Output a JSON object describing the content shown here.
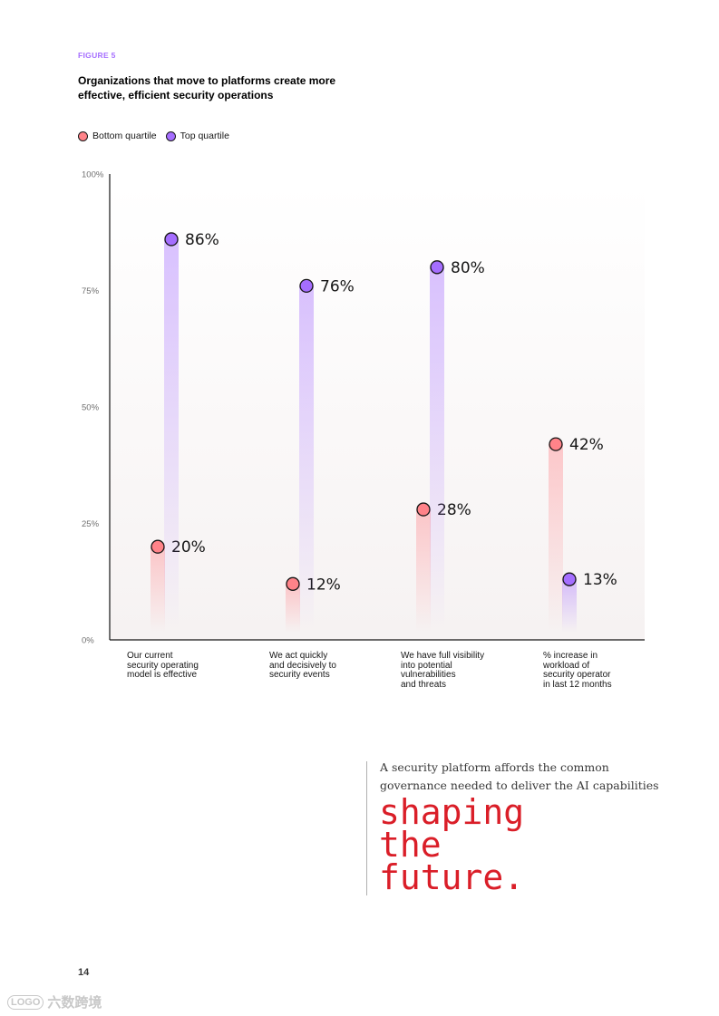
{
  "figure_label": "FIGURE 5",
  "colors": {
    "accent": "#a56eff",
    "bottom": "#ff8389",
    "top": "#a56eff",
    "quote_red": "#da1e28"
  },
  "chart_data": {
    "type": "dot-range",
    "title": "Organizations that move to platforms create more effective, efficient security operations",
    "categories": [
      "Our current security operating model is effective",
      "We act quickly and decisively to security events",
      "We have full visibility into potential vulnerabilities and threats",
      "% increase in workload of security operator in last 12 months"
    ],
    "category_lines": [
      [
        "Our current",
        "security operating",
        "model is effective"
      ],
      [
        "We act quickly",
        "and decisively to",
        "security events"
      ],
      [
        "We have full visibility",
        "into potential",
        "vulnerabilities",
        "and threats"
      ],
      [
        "% increase in",
        "workload of",
        "security operator",
        "in last 12 months"
      ]
    ],
    "series": [
      {
        "name": "Bottom quartile",
        "values": [
          20,
          12,
          28,
          42
        ],
        "labels": [
          "20%",
          "12%",
          "28%",
          "42%"
        ]
      },
      {
        "name": "Top quartile",
        "values": [
          86,
          76,
          80,
          13
        ],
        "labels": [
          "86%",
          "76%",
          "80%",
          "13%"
        ]
      }
    ],
    "ylim": [
      0,
      100
    ],
    "yticks": [
      0,
      25,
      50,
      75,
      100
    ],
    "ytick_labels": [
      "0%",
      "25%",
      "50%",
      "75%",
      "100%"
    ],
    "legend_position": "top-left"
  },
  "quote": {
    "text": "A security platform affords the common governance needed to deliver the AI capabilities",
    "big": "shaping\nthe\nfuture."
  },
  "page_number": "14",
  "watermark": {
    "logo": "LOGO",
    "text": "六数跨境"
  }
}
